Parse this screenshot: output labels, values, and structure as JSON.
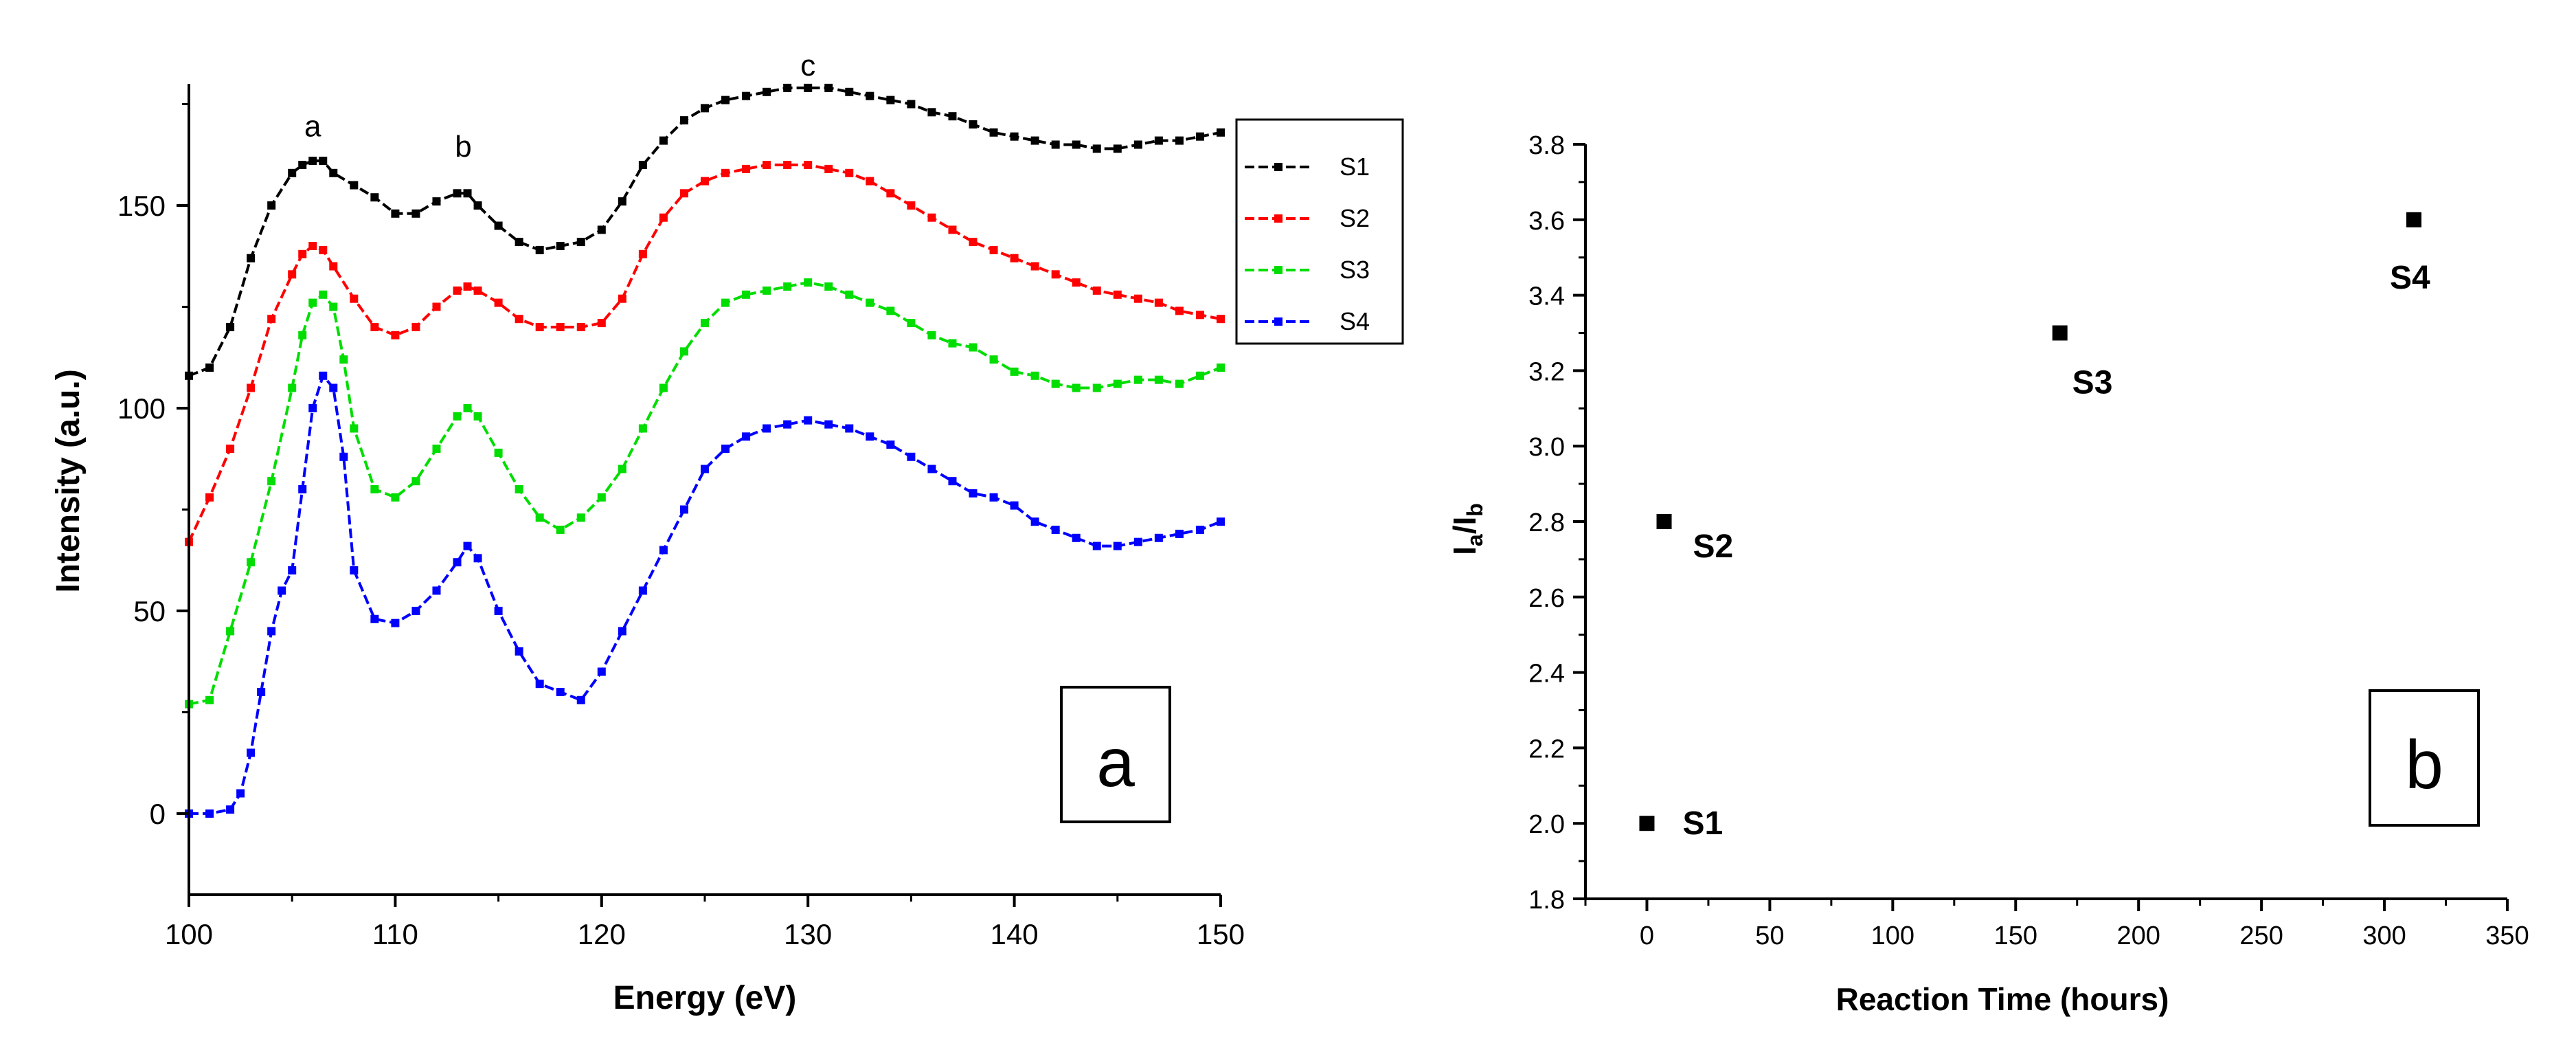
{
  "chart_data": [
    {
      "type": "line",
      "panel_label": "a",
      "xlabel": "Energy (eV)",
      "ylabel": "Intensity (a.u.)",
      "xlim": [
        100,
        150
      ],
      "ylim": [
        -20,
        180
      ],
      "xticks": [
        100,
        110,
        120,
        130,
        140,
        150
      ],
      "yticks": [
        0,
        50,
        100,
        150
      ],
      "grid": false,
      "legend_position": "top-right",
      "annotations": [
        {
          "text": "a",
          "x": 106,
          "y": 167
        },
        {
          "text": "b",
          "x": 113.3,
          "y": 162
        },
        {
          "text": "c",
          "x": 130,
          "y": 182
        }
      ],
      "series": [
        {
          "name": "S1",
          "color": "#000000",
          "x": [
            100,
            101,
            102,
            103,
            104,
            105,
            105.5,
            106,
            106.5,
            107,
            108,
            109,
            110,
            111,
            112,
            113,
            113.5,
            114,
            115,
            116,
            117,
            118,
            119,
            120,
            121,
            122,
            123,
            124,
            125,
            126,
            127,
            128,
            129,
            130,
            131,
            132,
            133,
            134,
            135,
            136,
            137,
            138,
            139,
            140,
            141,
            142,
            143,
            144,
            145,
            146,
            147,
            148,
            149,
            150
          ],
          "values": [
            108,
            110,
            120,
            137,
            150,
            158,
            160,
            161,
            161,
            158,
            155,
            152,
            148,
            148,
            151,
            153,
            153,
            150,
            145,
            141,
            139,
            140,
            141,
            144,
            151,
            160,
            166,
            171,
            174,
            176,
            177,
            178,
            179,
            179,
            179,
            178,
            177,
            176,
            175,
            173,
            172,
            170,
            168,
            167,
            166,
            165,
            165,
            164,
            164,
            165,
            166,
            166,
            167,
            168
          ]
        },
        {
          "name": "S2",
          "color": "#ff0000",
          "x": [
            100,
            101,
            102,
            103,
            104,
            105,
            105.5,
            106,
            106.5,
            107,
            108,
            109,
            110,
            111,
            112,
            113,
            113.5,
            114,
            115,
            116,
            117,
            118,
            119,
            120,
            121,
            122,
            123,
            124,
            125,
            126,
            127,
            128,
            129,
            130,
            131,
            132,
            133,
            134,
            135,
            136,
            137,
            138,
            139,
            140,
            141,
            142,
            143,
            144,
            145,
            146,
            147,
            148,
            149,
            150
          ],
          "values": [
            67,
            78,
            90,
            105,
            122,
            133,
            138,
            140,
            139,
            135,
            127,
            120,
            118,
            120,
            125,
            129,
            130,
            129,
            126,
            122,
            120,
            120,
            120,
            121,
            127,
            138,
            147,
            153,
            156,
            158,
            159,
            160,
            160,
            160,
            159,
            158,
            156,
            153,
            150,
            147,
            144,
            141,
            139,
            137,
            135,
            133,
            131,
            129,
            128,
            127,
            126,
            124,
            123,
            122
          ]
        },
        {
          "name": "S3",
          "color": "#00dd00",
          "x": [
            100,
            101,
            102,
            103,
            104,
            105,
            105.5,
            106,
            106.5,
            107,
            107.5,
            108,
            109,
            110,
            111,
            112,
            113,
            113.5,
            114,
            115,
            116,
            117,
            118,
            119,
            120,
            121,
            122,
            123,
            124,
            125,
            126,
            127,
            128,
            129,
            130,
            131,
            132,
            133,
            134,
            135,
            136,
            137,
            138,
            139,
            140,
            141,
            142,
            143,
            144,
            145,
            146,
            147,
            148,
            149,
            150
          ],
          "values": [
            27,
            28,
            45,
            62,
            82,
            105,
            118,
            126,
            128,
            125,
            112,
            95,
            80,
            78,
            82,
            90,
            98,
            100,
            98,
            89,
            80,
            73,
            70,
            73,
            78,
            85,
            95,
            105,
            114,
            121,
            126,
            128,
            129,
            130,
            131,
            130,
            128,
            126,
            124,
            121,
            118,
            116,
            115,
            112,
            109,
            108,
            106,
            105,
            105,
            106,
            107,
            107,
            106,
            108,
            110
          ]
        },
        {
          "name": "S4",
          "color": "#0000ff",
          "x": [
            100,
            101,
            102,
            102.5,
            103,
            103.5,
            104,
            104.5,
            105,
            105.5,
            106,
            106.5,
            107,
            107.5,
            108,
            109,
            110,
            111,
            112,
            113,
            113.5,
            114,
            115,
            116,
            117,
            118,
            119,
            120,
            121,
            122,
            123,
            124,
            125,
            126,
            127,
            128,
            129,
            130,
            131,
            132,
            133,
            134,
            135,
            136,
            137,
            138,
            139,
            140,
            141,
            142,
            143,
            144,
            145,
            146,
            147,
            148,
            149,
            150
          ],
          "values": [
            0,
            0,
            1,
            5,
            15,
            30,
            45,
            55,
            60,
            80,
            100,
            108,
            105,
            88,
            60,
            48,
            47,
            50,
            55,
            62,
            66,
            63,
            50,
            40,
            32,
            30,
            28,
            35,
            45,
            55,
            65,
            75,
            85,
            90,
            93,
            95,
            96,
            97,
            96,
            95,
            93,
            91,
            88,
            85,
            82,
            79,
            78,
            76,
            72,
            70,
            68,
            66,
            66,
            67,
            68,
            69,
            70,
            72
          ]
        }
      ]
    },
    {
      "type": "scatter",
      "panel_label": "b",
      "xlabel": "Reaction Time (hours)",
      "ylabel_main": "I",
      "ylabel_sub1": "a",
      "ylabel_slash": "/I",
      "ylabel_sub2": "b",
      "xlim": [
        -25,
        350
      ],
      "ylim": [
        1.8,
        3.8
      ],
      "xticks": [
        0,
        50,
        100,
        150,
        200,
        250,
        300,
        350
      ],
      "yticks": [
        1.8,
        2.0,
        2.2,
        2.4,
        2.6,
        2.8,
        3.0,
        3.2,
        3.4,
        3.6,
        3.8
      ],
      "grid": false,
      "points": [
        {
          "label": "S1",
          "x": 0,
          "y": 2.0
        },
        {
          "label": "S2",
          "x": 7,
          "y": 2.8
        },
        {
          "label": "S3",
          "x": 168,
          "y": 3.3
        },
        {
          "label": "S4",
          "x": 312,
          "y": 3.6
        }
      ]
    }
  ]
}
